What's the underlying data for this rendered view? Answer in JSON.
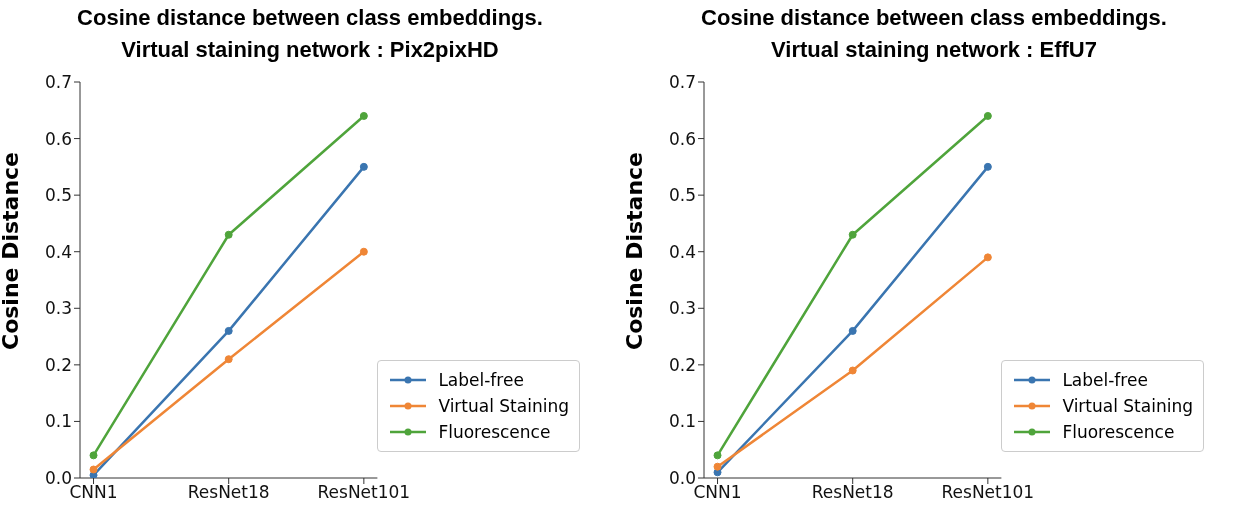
{
  "chart_data": [
    {
      "type": "line",
      "title": "Cosine distance between class embeddings.\nVirtual staining network : Pix2pixHD",
      "ylabel": "Cosine Distance",
      "categories": [
        "CNN1",
        "ResNet18",
        "ResNet101"
      ],
      "series": [
        {
          "name": "Label-free",
          "color": "#3a75b0",
          "values": [
            0.005,
            0.26,
            0.55
          ]
        },
        {
          "name": "Virtual Staining",
          "color": "#ef8636",
          "values": [
            0.015,
            0.21,
            0.4
          ]
        },
        {
          "name": "Fluorescence",
          "color": "#4fa43b",
          "values": [
            0.04,
            0.43,
            0.64
          ]
        }
      ],
      "ylim": [
        0,
        0.7
      ],
      "yticks": [
        {
          "value": 0,
          "label": "0.0"
        },
        0.1,
        0.2,
        0.3,
        0.4,
        0.5,
        0.6,
        0.7
      ],
      "grid": false,
      "legend": "bottom right",
      "marker": "circle",
      "line_style": "solid"
    },
    {
      "type": "line",
      "title": "Cosine distance between class embeddings.\nVirtual staining network : EffU7",
      "ylabel": "Cosine Distance",
      "categories": [
        "CNN1",
        "ResNet18",
        "ResNet101"
      ],
      "series": [
        {
          "name": "Label-free",
          "color": "#3a75b0",
          "values": [
            0.01,
            0.26,
            0.55
          ]
        },
        {
          "name": "Virtual Staining",
          "color": "#ef8636",
          "values": [
            0.02,
            0.19,
            0.39
          ]
        },
        {
          "name": "Fluorescence",
          "color": "#4fa43b",
          "values": [
            0.04,
            0.43,
            0.64
          ]
        }
      ],
      "ylim": [
        0,
        0.7
      ],
      "yticks": [
        {
          "value": 0,
          "label": "0.0"
        },
        0.1,
        0.2,
        0.3,
        0.4,
        0.5,
        0.6,
        0.7
      ],
      "grid": false,
      "legend": "bottom right",
      "marker": "circle",
      "line_style": "solid"
    }
  ]
}
